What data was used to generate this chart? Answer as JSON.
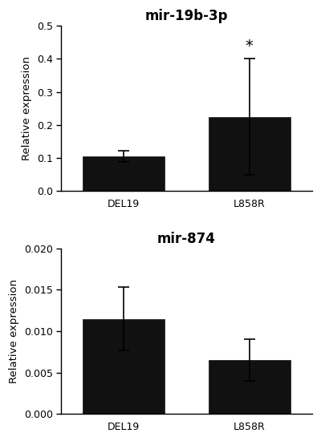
{
  "chart1": {
    "title": "mir-19b-3p",
    "categories": [
      "DEL19",
      "L858R"
    ],
    "values": [
      0.105,
      0.225
    ],
    "errors": [
      0.018,
      0.175
    ],
    "ylim": [
      0,
      0.5
    ],
    "yticks": [
      0.0,
      0.1,
      0.2,
      0.3,
      0.4,
      0.5
    ],
    "ylabel": "Relative expression",
    "bar_color": "#111111",
    "significance": "*",
    "sig_bar_index": 1
  },
  "chart2": {
    "title": "mir-874",
    "categories": [
      "DEL19",
      "L858R"
    ],
    "values": [
      0.0115,
      0.0065
    ],
    "errors": [
      0.0038,
      0.0025
    ],
    "ylim": [
      0,
      0.02
    ],
    "yticks": [
      0.0,
      0.005,
      0.01,
      0.015,
      0.02
    ],
    "ylabel": "Relative expression",
    "bar_color": "#111111"
  },
  "background_color": "#ffffff",
  "title_fontsize": 12,
  "label_fontsize": 9.5,
  "tick_fontsize": 9
}
